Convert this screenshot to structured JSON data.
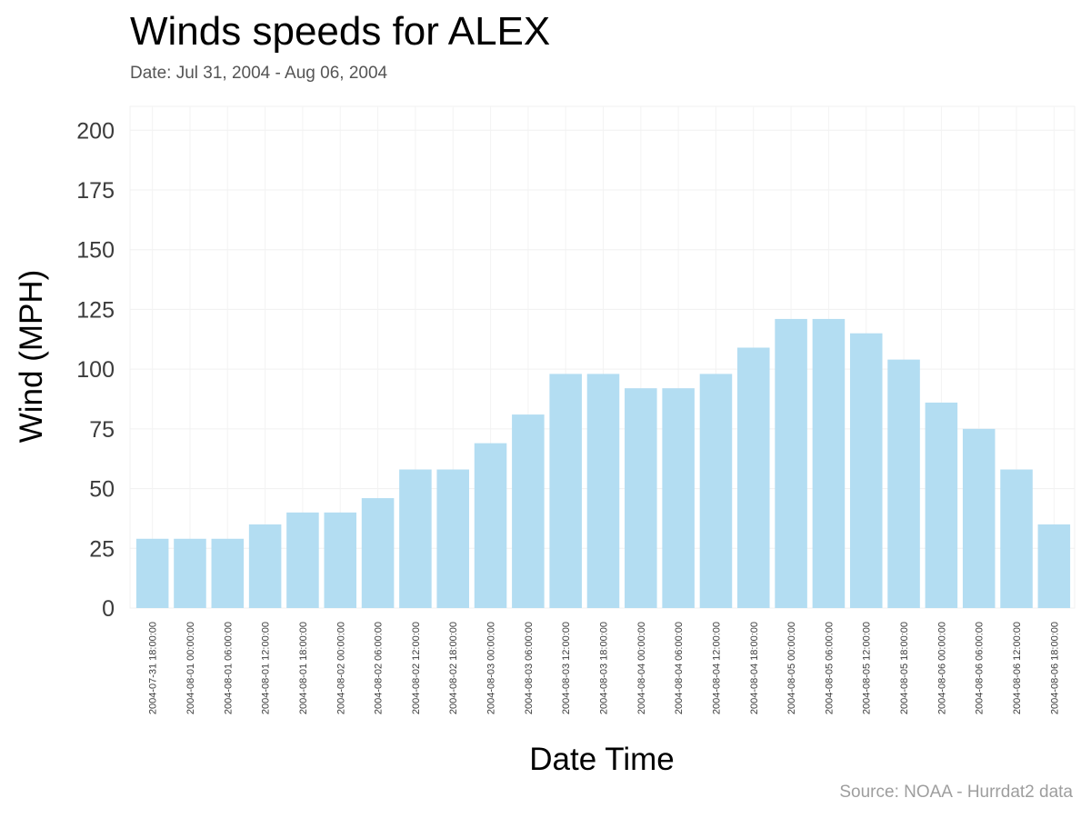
{
  "chart_data": {
    "type": "bar",
    "title": "Winds speeds for ALEX",
    "subtitle": "Date:  Jul 31, 2004 - Aug 06, 2004",
    "caption": "Source: NOAA - Hurrdat2 data",
    "xlabel": "Date Time",
    "ylabel": "Wind (MPH)",
    "ylim": [
      0,
      210
    ],
    "yticks": [
      0,
      25,
      50,
      75,
      100,
      125,
      150,
      175,
      200
    ],
    "grid": true,
    "bar_color": "#b3ddf2",
    "categories": [
      "2004-07-31 18:00:00",
      "2004-08-01 00:00:00",
      "2004-08-01 06:00:00",
      "2004-08-01 12:00:00",
      "2004-08-01 18:00:00",
      "2004-08-02 00:00:00",
      "2004-08-02 06:00:00",
      "2004-08-02 12:00:00",
      "2004-08-02 18:00:00",
      "2004-08-03 00:00:00",
      "2004-08-03 06:00:00",
      "2004-08-03 12:00:00",
      "2004-08-03 18:00:00",
      "2004-08-04 00:00:00",
      "2004-08-04 06:00:00",
      "2004-08-04 12:00:00",
      "2004-08-04 18:00:00",
      "2004-08-05 00:00:00",
      "2004-08-05 06:00:00",
      "2004-08-05 12:00:00",
      "2004-08-05 18:00:00",
      "2004-08-06 00:00:00",
      "2004-08-06 06:00:00",
      "2004-08-06 12:00:00",
      "2004-08-06 18:00:00"
    ],
    "values": [
      29,
      29,
      29,
      35,
      40,
      40,
      46,
      58,
      58,
      69,
      81,
      98,
      98,
      92,
      92,
      98,
      109,
      121,
      121,
      115,
      104,
      86,
      75,
      58,
      35
    ]
  }
}
